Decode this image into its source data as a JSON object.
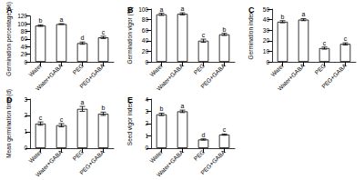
{
  "chart_data": [
    {
      "type": "bar",
      "title": "A",
      "y_label": "Germination percentage (%)",
      "categories": [
        "Water",
        "Water+GABA",
        "PEG",
        "PEG+GABA"
      ],
      "values": [
        95,
        99,
        49,
        64
      ],
      "errors": [
        2,
        1,
        3,
        3
      ],
      "annotations": [
        "b",
        "a",
        "d",
        "c"
      ],
      "color": "#ffffff",
      "ylim": [
        0,
        120
      ],
      "yticks": [
        0,
        20,
        40,
        60,
        80,
        100,
        120
      ],
      "grid": false
    },
    {
      "type": "bar",
      "title": "B",
      "y_label": "Germination vigor (%)",
      "categories": [
        "Water",
        "Water+GABA",
        "PEG",
        "PEG+GABA"
      ],
      "values": [
        90,
        91,
        40,
        52
      ],
      "errors": [
        2,
        2,
        3,
        2
      ],
      "annotations": [
        "a",
        "a",
        "c",
        "b"
      ],
      "color": "#ffffff",
      "ylim": [
        0,
        100
      ],
      "yticks": [
        0,
        20,
        40,
        60,
        80,
        100
      ],
      "grid": false
    },
    {
      "type": "bar",
      "title": "C",
      "y_label": "Germination index",
      "categories": [
        "Water",
        "Water+GABA",
        "PEG",
        "PEG+GABA"
      ],
      "values": [
        38,
        40,
        13,
        17
      ],
      "errors": [
        1,
        1,
        1,
        1
      ],
      "annotations": [
        "b",
        "a",
        "c",
        "c"
      ],
      "color": "#ffffff",
      "ylim": [
        0,
        50
      ],
      "yticks": [
        0,
        10,
        20,
        30,
        40,
        50
      ],
      "grid": false
    },
    {
      "type": "bar",
      "title": "D",
      "y_label": "Mean germination time (d)",
      "categories": [
        "Water",
        "Water+GABA",
        "PEG",
        "PEG+GABA"
      ],
      "values": [
        1.5,
        1.4,
        2.4,
        2.1
      ],
      "errors": [
        0.1,
        0.1,
        0.15,
        0.1
      ],
      "annotations": [
        "c",
        "c",
        "a",
        "b"
      ],
      "color": "#ffffff",
      "ylim": [
        0,
        3
      ],
      "yticks": [
        0,
        1,
        2,
        3
      ],
      "grid": false
    },
    {
      "type": "bar",
      "title": "E",
      "y_label": "Seed vigor index",
      "categories": [
        "Water",
        "Water+GABA",
        "PEG",
        "PEG+GABA"
      ],
      "values": [
        2.75,
        3.0,
        0.7,
        1.1
      ],
      "errors": [
        0.1,
        0.1,
        0.05,
        0.05
      ],
      "annotations": [
        "b",
        "a",
        "d",
        "c"
      ],
      "color": "#ffffff",
      "ylim": [
        0,
        4
      ],
      "yticks": [
        0,
        1,
        2,
        3,
        4
      ],
      "grid": false
    }
  ]
}
